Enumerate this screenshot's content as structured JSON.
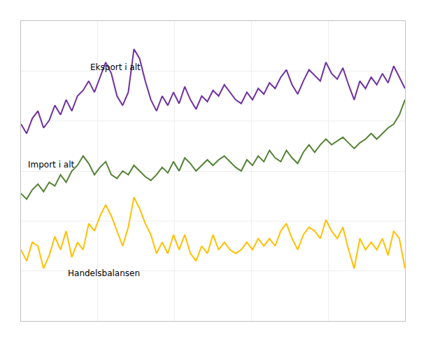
{
  "chart_data": {
    "type": "line",
    "x": [
      0,
      1,
      2,
      3,
      4,
      5,
      6,
      7,
      8,
      9,
      10,
      11,
      12,
      13,
      14,
      15,
      16,
      17,
      18,
      19,
      20,
      21,
      22,
      23,
      24,
      25,
      26,
      27,
      28,
      29,
      30,
      31,
      32,
      33,
      34,
      35,
      36,
      37,
      38,
      39,
      40,
      41,
      42,
      43,
      44,
      45,
      46,
      47,
      48,
      49,
      50,
      51,
      52,
      53,
      54,
      55,
      56,
      57,
      58,
      59,
      60,
      61,
      62,
      63,
      64,
      65,
      66,
      67,
      68
    ],
    "series": [
      {
        "color": "#7030A0",
        "values": [
          105,
          100,
          108,
          112,
          103,
          107,
          115,
          110,
          118,
          112,
          120,
          123,
          128,
          122,
          130,
          138,
          132,
          120,
          115,
          122,
          145,
          140,
          128,
          118,
          112,
          120,
          115,
          122,
          116,
          125,
          118,
          113,
          120,
          117,
          123,
          120,
          126,
          122,
          118,
          116,
          122,
          118,
          124,
          121,
          127,
          124,
          130,
          134,
          126,
          121,
          128,
          134,
          131,
          128,
          138,
          132,
          129,
          135,
          126,
          118,
          128,
          124,
          130,
          126,
          132,
          127,
          136,
          130,
          124
        ]
      },
      {
        "color": "#548235",
        "values": [
          68,
          65,
          70,
          73,
          69,
          74,
          72,
          78,
          74,
          80,
          83,
          88,
          84,
          78,
          82,
          85,
          78,
          76,
          80,
          78,
          83,
          80,
          77,
          75,
          78,
          82,
          79,
          85,
          80,
          87,
          84,
          80,
          83,
          86,
          83,
          86,
          88,
          85,
          82,
          80,
          86,
          83,
          88,
          85,
          91,
          87,
          85,
          91,
          87,
          84,
          90,
          94,
          90,
          94,
          97,
          94,
          96,
          98,
          95,
          92,
          95,
          97,
          100,
          97,
          100,
          103,
          105,
          110,
          118
        ]
      },
      {
        "color": "#FFC000",
        "values": [
          38,
          32,
          42,
          40,
          28,
          35,
          45,
          38,
          48,
          34,
          42,
          38,
          52,
          48,
          56,
          62,
          56,
          48,
          40,
          50,
          66,
          60,
          52,
          46,
          36,
          42,
          36,
          46,
          38,
          46,
          36,
          32,
          40,
          36,
          46,
          38,
          42,
          38,
          36,
          38,
          42,
          38,
          44,
          40,
          44,
          40,
          48,
          52,
          44,
          38,
          46,
          50,
          48,
          44,
          54,
          48,
          44,
          50,
          38,
          28,
          44,
          38,
          42,
          38,
          44,
          35,
          48,
          44,
          28
        ]
      }
    ],
    "annotations": [
      {
        "text": "Eksport i alt",
        "x": 12,
        "y": 132
      },
      {
        "text": "Import i alt",
        "x": 1,
        "y": 80
      },
      {
        "text": "Handelsbalansen",
        "x": 8,
        "y": 22
      }
    ],
    "xlim": [
      0,
      68
    ],
    "xticks": [
      0,
      13.6,
      27.2,
      40.8,
      54.4,
      68
    ],
    "ylim": [
      0,
      160
    ],
    "yticks": [
      0,
      26.666666666666668,
      53.333333333333336,
      80,
      106.66666666666667,
      133.33333333333334,
      160
    ],
    "grid": true,
    "tick_labels": false
  }
}
